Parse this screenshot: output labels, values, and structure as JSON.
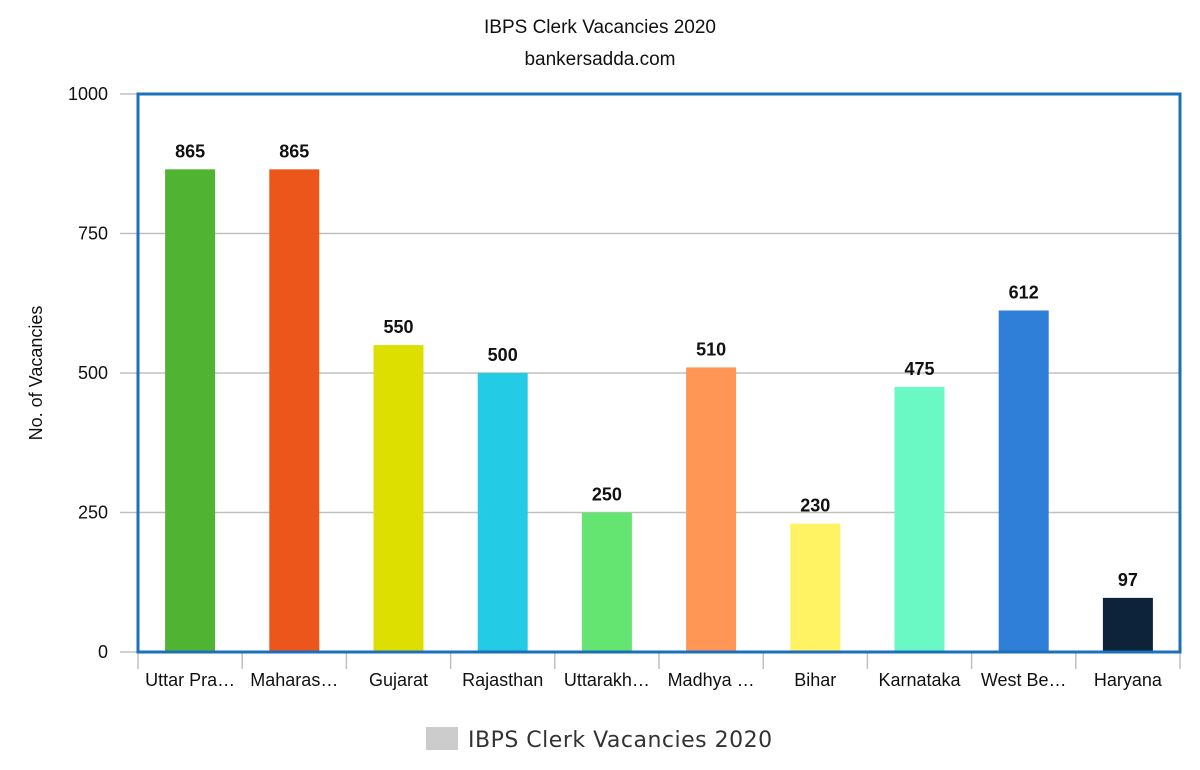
{
  "chart_data": {
    "type": "bar",
    "title": "IBPS Clerk Vacancies 2020",
    "subtitle": "bankersadda.com",
    "xlabel": "",
    "ylabel": "No. of Vacancies",
    "ylim": [
      0,
      1000
    ],
    "yticks": [
      "0",
      "250",
      "500",
      "750",
      "1000"
    ],
    "grid": true,
    "legend_position": "bottom",
    "categories": [
      "Uttar Pra…",
      "Maharas…",
      "Gujarat",
      "Rajasthan",
      "Uttarakh…",
      "Madhya …",
      "Bihar",
      "Karnataka",
      "West Be…",
      "Haryana"
    ],
    "series": [
      {
        "name": "IBPS Clerk Vacancies 2020",
        "values": [
          865,
          865,
          550,
          500,
          250,
          510,
          230,
          475,
          612,
          97
        ],
        "value_labels": [
          "865",
          "865",
          "550",
          "500",
          "250",
          "510",
          "230",
          "475",
          "612",
          "97"
        ]
      }
    ],
    "colors": [
      "#50b432",
      "#ed561b",
      "#dddf00",
      "#24cbe5",
      "#64e572",
      "#ff9655",
      "#fff263",
      "#6af9c4",
      "#2f7ed8",
      "#0d233a"
    ],
    "legend_swatch_color": "#cccccc",
    "plot_border_color": "#1c6fba"
  }
}
